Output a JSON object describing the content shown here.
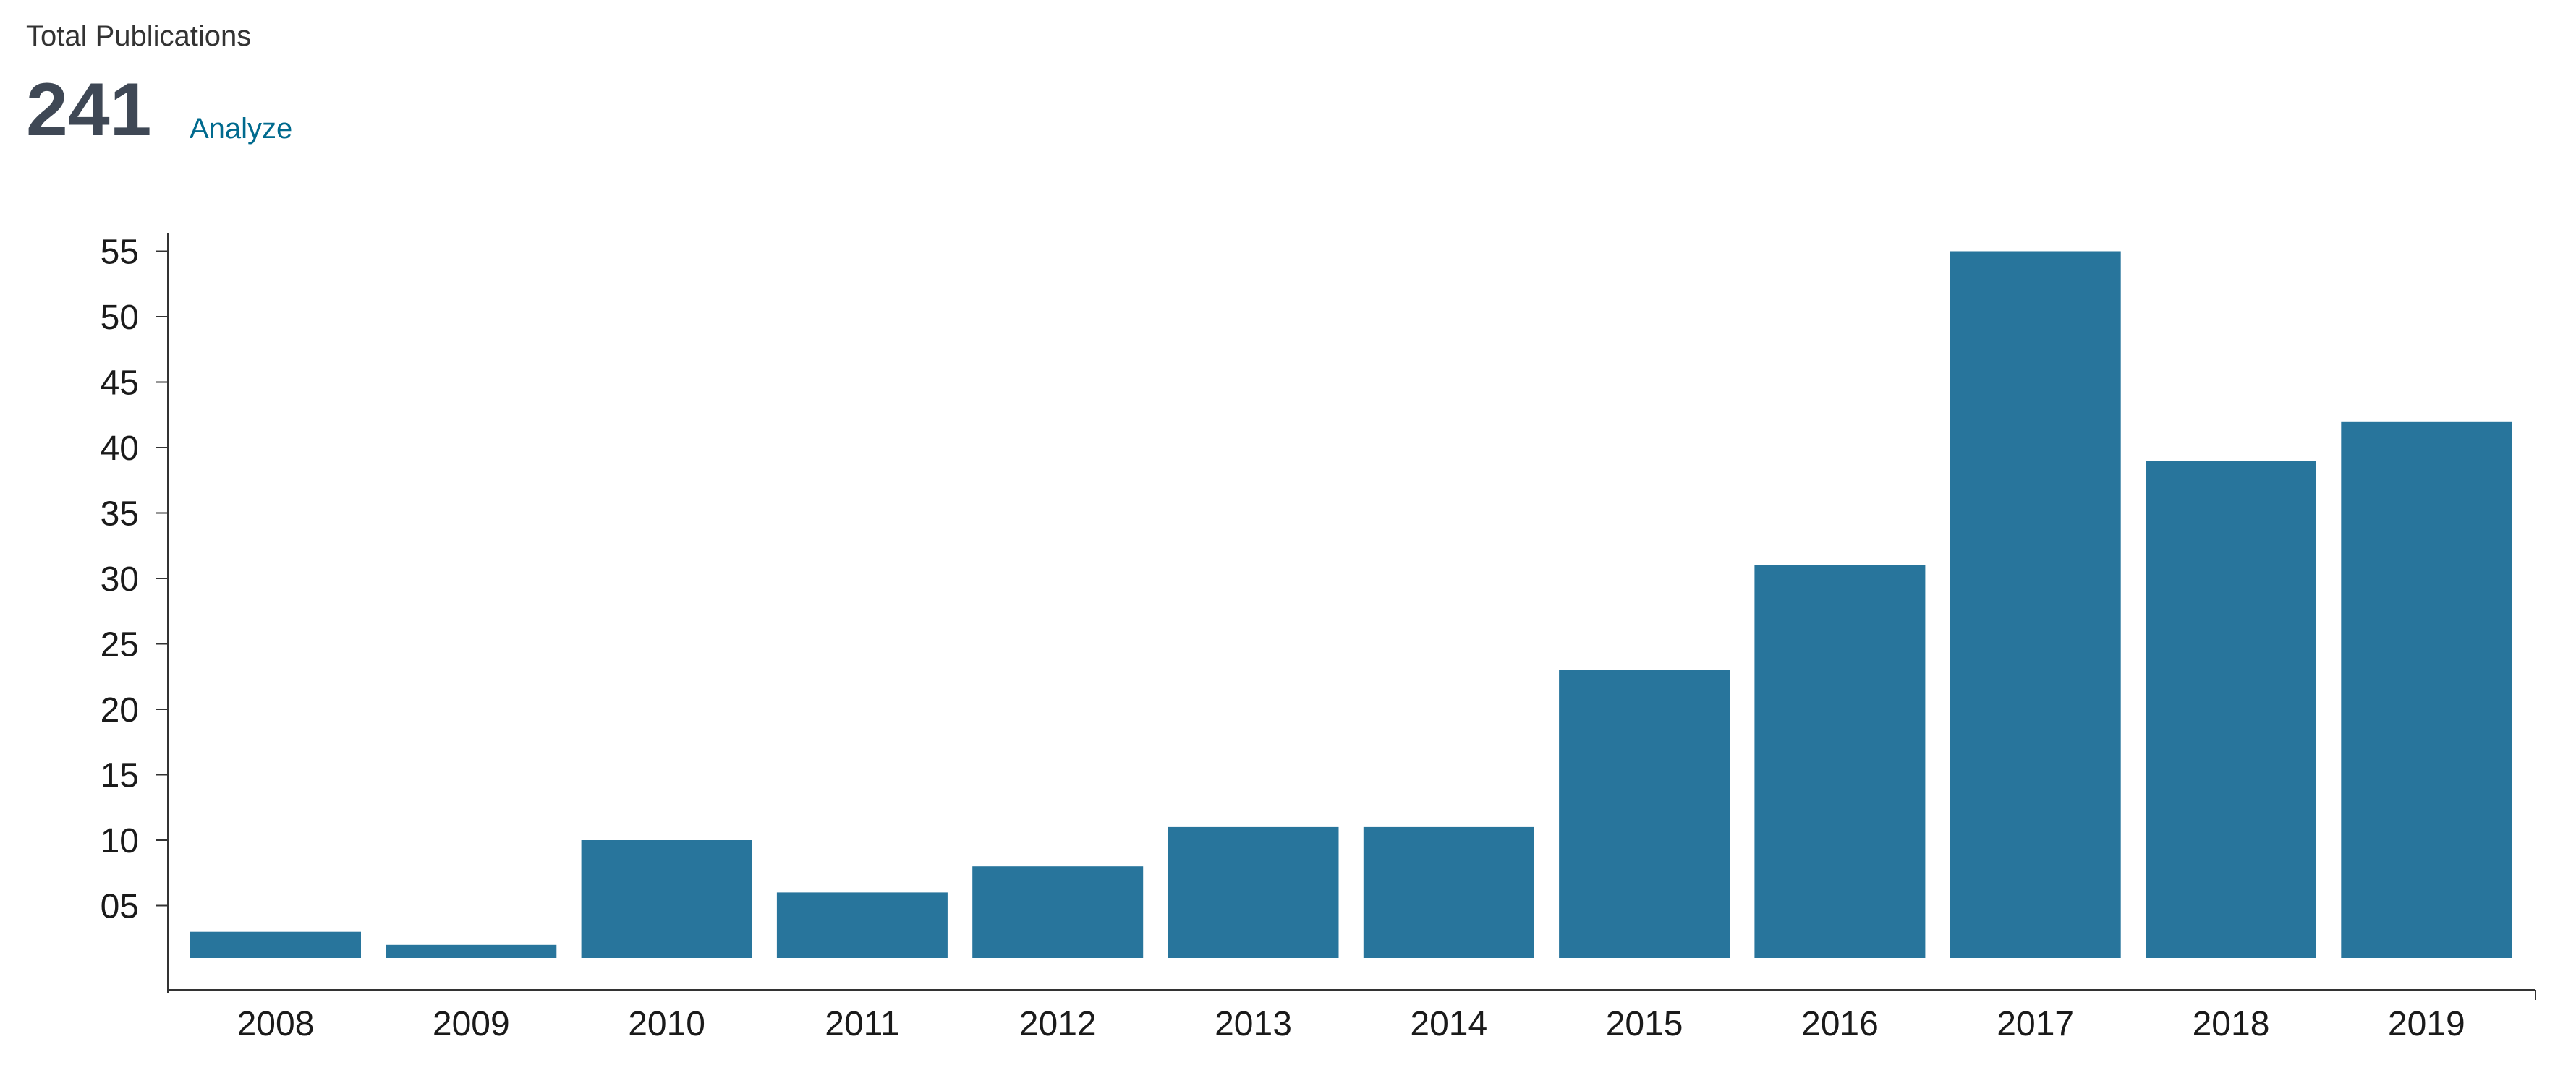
{
  "header": {
    "label": "Total Publications",
    "total": "241",
    "analyze_link": "Analyze"
  },
  "colors": {
    "bar": "#28759c",
    "axis": "#333333",
    "link": "#006a8e"
  },
  "chart_data": {
    "type": "bar",
    "title": "",
    "xlabel": "",
    "ylabel": "",
    "categories": [
      "2008",
      "2009",
      "2010",
      "2011",
      "2012",
      "2013",
      "2014",
      "2015",
      "2016",
      "2017",
      "2018",
      "2019"
    ],
    "values": [
      3,
      2,
      10,
      6,
      8,
      11,
      11,
      23,
      31,
      55,
      39,
      42
    ],
    "ylim": [
      0,
      57
    ],
    "yticks": [
      5,
      10,
      15,
      20,
      25,
      30,
      35,
      40,
      45,
      50,
      55
    ],
    "ytick_labels": [
      "05",
      "10",
      "15",
      "20",
      "25",
      "30",
      "35",
      "40",
      "45",
      "50",
      "55"
    ],
    "grid": false,
    "legend": "none"
  }
}
